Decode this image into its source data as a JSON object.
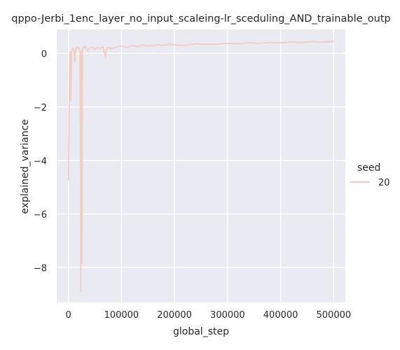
{
  "chart_data": {
    "type": "line",
    "title": "qppo-Jerbi_1enc_layer_no_input_scaleing-lr_sceduling_AND_trainable_outp",
    "xlabel": "global_step",
    "ylabel": "explained_variance",
    "xlim": [
      -22000,
      522000
    ],
    "ylim": [
      -9.3,
      0.9
    ],
    "xticks": [
      0,
      100000,
      200000,
      300000,
      400000,
      500000
    ],
    "yticks": [
      -8,
      -6,
      -4,
      -2,
      0
    ],
    "grid": true,
    "legend": {
      "title": "seed",
      "placement": "right",
      "entries": [
        "20"
      ]
    },
    "series": [
      {
        "name": "20",
        "color": "#f3cdc4",
        "x": [
          0,
          1500,
          3000,
          4500,
          6000,
          8000,
          10000,
          12000,
          14000,
          16000,
          18000,
          20000,
          22000,
          23500,
          24500,
          25500,
          26500,
          28000,
          30000,
          33000,
          36000,
          40000,
          45000,
          50000,
          55000,
          60000,
          65000,
          70000,
          72000,
          75000,
          80000,
          90000,
          100000,
          110000,
          120000,
          130000,
          140000,
          150000,
          160000,
          170000,
          180000,
          190000,
          200000,
          220000,
          240000,
          260000,
          280000,
          300000,
          320000,
          340000,
          360000,
          380000,
          400000,
          420000,
          440000,
          460000,
          480000,
          500000
        ],
        "y": [
          -4.75,
          -1.8,
          0.05,
          -1.75,
          0.1,
          0.2,
          0.15,
          -0.3,
          0.22,
          0.18,
          0.25,
          0.2,
          0.1,
          -8.9,
          0.1,
          -7.85,
          0.15,
          0.22,
          0.28,
          0.2,
          0.1,
          0.2,
          0.25,
          0.15,
          0.22,
          0.18,
          0.25,
          -0.15,
          0.2,
          0.22,
          0.18,
          0.24,
          0.28,
          0.22,
          0.3,
          0.25,
          0.32,
          0.28,
          0.3,
          0.33,
          0.3,
          0.35,
          0.32,
          0.3,
          0.36,
          0.34,
          0.35,
          0.38,
          0.36,
          0.4,
          0.38,
          0.42,
          0.4,
          0.43,
          0.41,
          0.45,
          0.42,
          0.45
        ]
      }
    ]
  }
}
